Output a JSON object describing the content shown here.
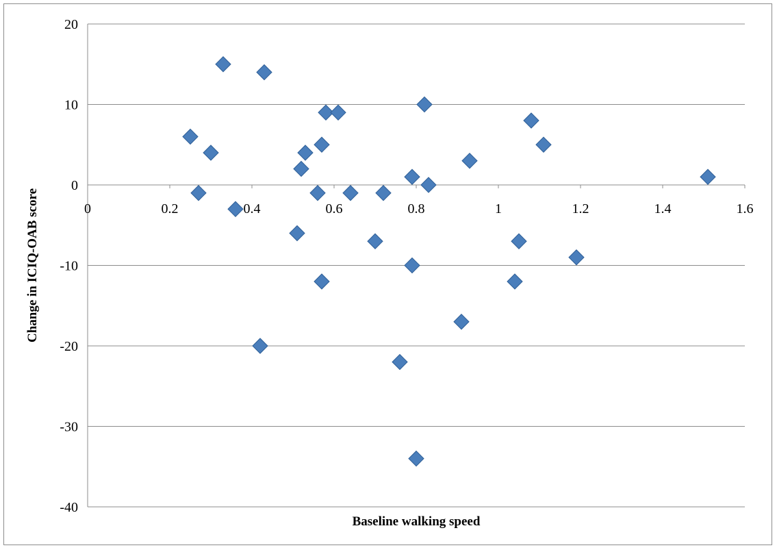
{
  "chart_data": {
    "type": "scatter",
    "xlabel": "Baseline walking speed",
    "ylabel": "Change in  ICIQ-OAB score",
    "xlim": [
      0,
      1.6
    ],
    "ylim": [
      -40,
      20
    ],
    "x_ticks": [
      "0",
      "0.2",
      "0.4",
      "0.6",
      "0.8",
      "1",
      "1.2",
      "1.4",
      "1.6"
    ],
    "x_tick_values": [
      0,
      0.2,
      0.4,
      0.6,
      0.8,
      1.0,
      1.2,
      1.4,
      1.6
    ],
    "y_ticks": [
      "20",
      "10",
      "0",
      "-10",
      "-20",
      "-30",
      "-40"
    ],
    "y_tick_values": [
      20,
      10,
      0,
      -10,
      -20,
      -30,
      -40
    ],
    "grid": "horizontal",
    "legend": "none",
    "marker": "diamond",
    "marker_color": "#4a7ebb",
    "marker_edge_color": "#2f5f97",
    "series": [
      {
        "points": [
          [
            0.25,
            6
          ],
          [
            0.27,
            -1
          ],
          [
            0.3,
            4
          ],
          [
            0.33,
            15
          ],
          [
            0.36,
            -3
          ],
          [
            0.42,
            -20
          ],
          [
            0.43,
            14
          ],
          [
            0.51,
            -6
          ],
          [
            0.52,
            2
          ],
          [
            0.53,
            4
          ],
          [
            0.56,
            -1
          ],
          [
            0.57,
            5
          ],
          [
            0.57,
            -12
          ],
          [
            0.58,
            9
          ],
          [
            0.61,
            9
          ],
          [
            0.64,
            -1
          ],
          [
            0.7,
            -7
          ],
          [
            0.72,
            -1
          ],
          [
            0.76,
            -22
          ],
          [
            0.79,
            1
          ],
          [
            0.79,
            -10
          ],
          [
            0.8,
            -34
          ],
          [
            0.82,
            10
          ],
          [
            0.83,
            0
          ],
          [
            0.91,
            -17
          ],
          [
            0.93,
            3
          ],
          [
            1.04,
            -12
          ],
          [
            1.05,
            -7
          ],
          [
            1.08,
            8
          ],
          [
            1.11,
            5
          ],
          [
            1.19,
            -9
          ],
          [
            1.51,
            1
          ]
        ]
      }
    ]
  }
}
